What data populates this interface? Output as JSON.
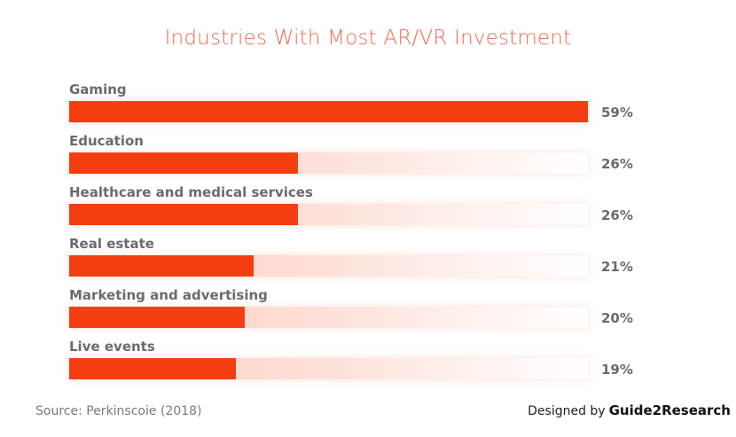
{
  "chart_data": {
    "type": "bar",
    "orientation": "horizontal",
    "title": "Industries With Most AR/VR Investment",
    "categories": [
      "Gaming",
      "Education",
      "Healthcare and medical services",
      "Real estate",
      "Marketing and advertising",
      "Live events"
    ],
    "values": [
      59,
      26,
      26,
      21,
      20,
      19
    ],
    "value_labels": [
      "59%",
      "26%",
      "26%",
      "21%",
      "20%",
      "19%"
    ],
    "unit": "%",
    "xlim": [
      0,
      59
    ],
    "grid": false,
    "legend": "none"
  },
  "footer": {
    "source": "Source: Perkinscoie (2018)",
    "designed_by": "Designed by",
    "brand": "Guide2Research"
  },
  "colors": {
    "bar": "#f43e12",
    "title": "#f06a4f",
    "track_start": "#fcc8bb",
    "label": "#6b6b6b"
  }
}
